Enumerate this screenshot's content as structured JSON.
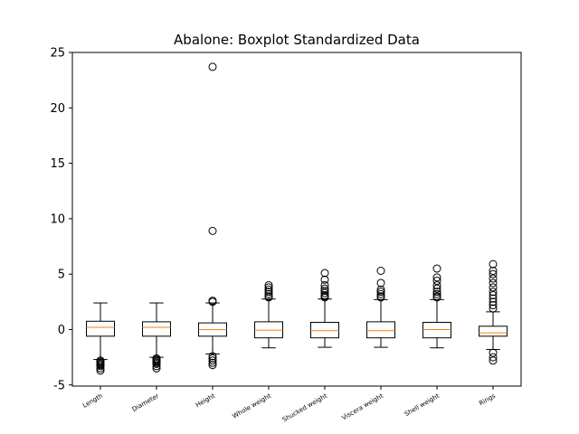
{
  "chart_data": {
    "type": "boxplot",
    "title": "Abalone: Boxplot Standardized Data",
    "xlabel": "",
    "ylabel": "",
    "ylim": [
      -5.1,
      25
    ],
    "yticks": [
      -5,
      0,
      5,
      10,
      15,
      20,
      25
    ],
    "grid": false,
    "colors": {
      "box": "#000000",
      "median": "#ff7f0e",
      "outlier": "#000000",
      "background": "#ffffff"
    },
    "categories": [
      "Length",
      "Diameter",
      "Height",
      "Whole weight",
      "Shucked weight",
      "Viscera weight",
      "Shell weight",
      "Rings"
    ],
    "boxes": [
      {
        "label": "Length",
        "q1": -0.6,
        "median": 0.2,
        "q3": 0.75,
        "whisker_low": -2.7,
        "whisker_high": 2.4,
        "outliers": [
          -2.8,
          -2.9,
          -3.0,
          -3.1,
          -3.2,
          -3.3,
          -3.5,
          -3.7
        ]
      },
      {
        "label": "Diameter",
        "q1": -0.6,
        "median": 0.2,
        "q3": 0.7,
        "whisker_low": -2.5,
        "whisker_high": 2.4,
        "outliers": [
          -2.6,
          -2.7,
          -2.8,
          -2.9,
          -3.0,
          -3.1,
          -3.3,
          -3.5
        ]
      },
      {
        "label": "Height",
        "q1": -0.6,
        "median": 0.0,
        "q3": 0.6,
        "whisker_low": -2.2,
        "whisker_high": 2.4,
        "outliers": [
          23.7,
          8.9,
          2.6,
          2.5,
          -2.4,
          -2.6,
          -2.8,
          -3.0,
          -3.2
        ]
      },
      {
        "label": "Whole weight",
        "q1": -0.75,
        "median": -0.05,
        "q3": 0.7,
        "whisker_low": -1.65,
        "whisker_high": 2.75,
        "outliers": [
          2.9,
          3.0,
          3.2,
          3.4,
          3.6,
          3.8,
          4.0
        ]
      },
      {
        "label": "Shucked weight",
        "q1": -0.75,
        "median": -0.1,
        "q3": 0.65,
        "whisker_low": -1.6,
        "whisker_high": 2.75,
        "outliers": [
          2.9,
          3.0,
          3.1,
          3.3,
          3.5,
          3.7,
          4.0,
          4.5,
          5.1
        ]
      },
      {
        "label": "Viscera weight",
        "q1": -0.75,
        "median": -0.1,
        "q3": 0.7,
        "whisker_low": -1.6,
        "whisker_high": 2.7,
        "outliers": [
          2.9,
          3.0,
          3.2,
          3.4,
          3.6,
          4.2,
          5.3
        ]
      },
      {
        "label": "Shell weight",
        "q1": -0.75,
        "median": 0.0,
        "q3": 0.65,
        "whisker_low": -1.65,
        "whisker_high": 2.7,
        "outliers": [
          2.9,
          3.0,
          3.2,
          3.4,
          3.7,
          4.0,
          4.4,
          4.7,
          5.5
        ]
      },
      {
        "label": "Rings",
        "q1": -0.6,
        "median": -0.3,
        "q3": 0.3,
        "whisker_low": -1.8,
        "whisker_high": 1.6,
        "outliers": [
          1.9,
          2.2,
          2.5,
          2.8,
          3.1,
          3.4,
          3.8,
          4.2,
          4.6,
          5.0,
          5.3,
          5.9,
          -2.1,
          -2.5,
          -2.8
        ]
      }
    ]
  }
}
